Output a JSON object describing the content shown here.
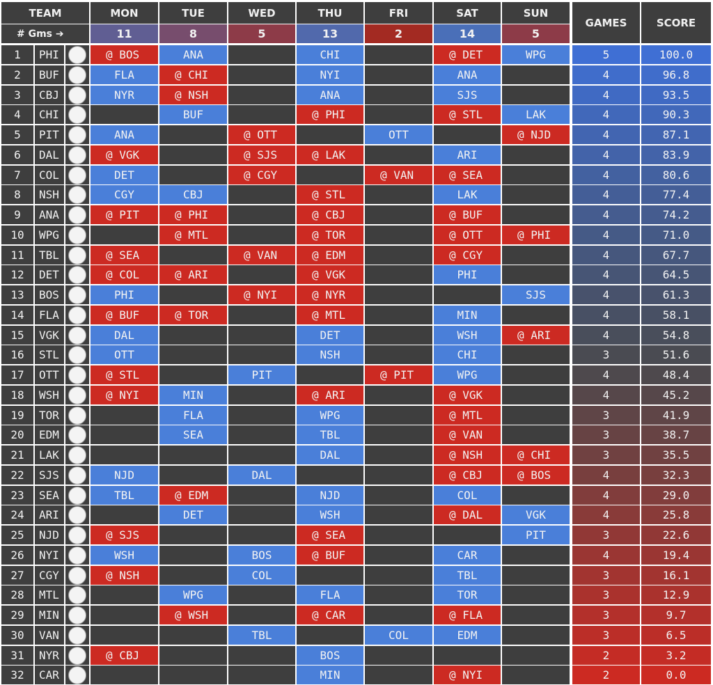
{
  "header": {
    "team": "TEAM",
    "games": "GAMES",
    "score": "SCORE",
    "gms_label": "# Gms ➔"
  },
  "days": [
    {
      "label": "MON",
      "games": "11"
    },
    {
      "label": "TUE",
      "games": "8"
    },
    {
      "label": "WED",
      "games": "5"
    },
    {
      "label": "THU",
      "games": "13"
    },
    {
      "label": "FRI",
      "games": "2"
    },
    {
      "label": "SAT",
      "games": "14"
    },
    {
      "label": "SUN",
      "games": "5"
    }
  ],
  "colors": {
    "home": "#4a7fd9",
    "away": "#cc2a22",
    "empty": "#3e3e3e",
    "score_high": "#3f6fd4",
    "score_low": "#cc2a22"
  },
  "teams": [
    {
      "rank": "1",
      "abbr": "PHI",
      "icon": "flyers-logo-icon",
      "days": [
        "@ BOS",
        "ANA",
        "",
        "CHI",
        "",
        "@ DET",
        "WPG"
      ],
      "games": "5",
      "score": "100.0"
    },
    {
      "rank": "2",
      "abbr": "BUF",
      "icon": "sabres-logo-icon",
      "days": [
        "FLA",
        "@ CHI",
        "",
        "NYI",
        "",
        "ANA",
        ""
      ],
      "games": "4",
      "score": "96.8"
    },
    {
      "rank": "3",
      "abbr": "CBJ",
      "icon": "blue-jackets-logo-icon",
      "days": [
        "NYR",
        "@ NSH",
        "",
        "ANA",
        "",
        "SJS",
        ""
      ],
      "games": "4",
      "score": "93.5"
    },
    {
      "rank": "4",
      "abbr": "CHI",
      "icon": "blackhawks-logo-icon",
      "days": [
        "",
        "BUF",
        "",
        "@ PHI",
        "",
        "@ STL",
        "LAK"
      ],
      "games": "4",
      "score": "90.3"
    },
    {
      "rank": "5",
      "abbr": "PIT",
      "icon": "penguins-logo-icon",
      "days": [
        "ANA",
        "",
        "@ OTT",
        "",
        "OTT",
        "",
        "@ NJD"
      ],
      "games": "4",
      "score": "87.1"
    },
    {
      "rank": "6",
      "abbr": "DAL",
      "icon": "stars-logo-icon",
      "days": [
        "@ VGK",
        "",
        "@ SJS",
        "@ LAK",
        "",
        "ARI",
        ""
      ],
      "games": "4",
      "score": "83.9"
    },
    {
      "rank": "7",
      "abbr": "COL",
      "icon": "avalanche-logo-icon",
      "days": [
        "DET",
        "",
        "@ CGY",
        "",
        "@ VAN",
        "@ SEA",
        ""
      ],
      "games": "4",
      "score": "80.6"
    },
    {
      "rank": "8",
      "abbr": "NSH",
      "icon": "predators-logo-icon",
      "days": [
        "CGY",
        "CBJ",
        "",
        "@ STL",
        "",
        "LAK",
        ""
      ],
      "games": "4",
      "score": "77.4"
    },
    {
      "rank": "9",
      "abbr": "ANA",
      "icon": "ducks-logo-icon",
      "days": [
        "@ PIT",
        "@ PHI",
        "",
        "@ CBJ",
        "",
        "@ BUF",
        ""
      ],
      "games": "4",
      "score": "74.2"
    },
    {
      "rank": "10",
      "abbr": "WPG",
      "icon": "jets-logo-icon",
      "days": [
        "",
        "@ MTL",
        "",
        "@ TOR",
        "",
        "@ OTT",
        "@ PHI"
      ],
      "games": "4",
      "score": "71.0"
    },
    {
      "rank": "11",
      "abbr": "TBL",
      "icon": "lightning-logo-icon",
      "days": [
        "@ SEA",
        "",
        "@ VAN",
        "@ EDM",
        "",
        "@ CGY",
        ""
      ],
      "games": "4",
      "score": "67.7"
    },
    {
      "rank": "12",
      "abbr": "DET",
      "icon": "red-wings-logo-icon",
      "days": [
        "@ COL",
        "@ ARI",
        "",
        "@ VGK",
        "",
        "PHI",
        ""
      ],
      "games": "4",
      "score": "64.5"
    },
    {
      "rank": "13",
      "abbr": "BOS",
      "icon": "bruins-logo-icon",
      "days": [
        "PHI",
        "",
        "@ NYI",
        "@ NYR",
        "",
        "",
        "SJS"
      ],
      "games": "4",
      "score": "61.3"
    },
    {
      "rank": "14",
      "abbr": "FLA",
      "icon": "panthers-logo-icon",
      "days": [
        "@ BUF",
        "@ TOR",
        "",
        "@ MTL",
        "",
        "MIN",
        ""
      ],
      "games": "4",
      "score": "58.1"
    },
    {
      "rank": "15",
      "abbr": "VGK",
      "icon": "golden-knights-logo-icon",
      "days": [
        "DAL",
        "",
        "",
        "DET",
        "",
        "WSH",
        "@ ARI"
      ],
      "games": "4",
      "score": "54.8"
    },
    {
      "rank": "16",
      "abbr": "STL",
      "icon": "blues-logo-icon",
      "days": [
        "OTT",
        "",
        "",
        "NSH",
        "",
        "CHI",
        ""
      ],
      "games": "3",
      "score": "51.6"
    },
    {
      "rank": "17",
      "abbr": "OTT",
      "icon": "senators-logo-icon",
      "days": [
        "@ STL",
        "",
        "PIT",
        "",
        "@ PIT",
        "WPG",
        ""
      ],
      "games": "4",
      "score": "48.4"
    },
    {
      "rank": "18",
      "abbr": "WSH",
      "icon": "capitals-logo-icon",
      "days": [
        "@ NYI",
        "MIN",
        "",
        "@ ARI",
        "",
        "@ VGK",
        ""
      ],
      "games": "4",
      "score": "45.2"
    },
    {
      "rank": "19",
      "abbr": "TOR",
      "icon": "maple-leafs-logo-icon",
      "days": [
        "",
        "FLA",
        "",
        "WPG",
        "",
        "@ MTL",
        ""
      ],
      "games": "3",
      "score": "41.9"
    },
    {
      "rank": "20",
      "abbr": "EDM",
      "icon": "oilers-logo-icon",
      "days": [
        "",
        "SEA",
        "",
        "TBL",
        "",
        "@ VAN",
        ""
      ],
      "games": "3",
      "score": "38.7"
    },
    {
      "rank": "21",
      "abbr": "LAK",
      "icon": "kings-logo-icon",
      "days": [
        "",
        "",
        "",
        "DAL",
        "",
        "@ NSH",
        "@ CHI"
      ],
      "games": "3",
      "score": "35.5"
    },
    {
      "rank": "22",
      "abbr": "SJS",
      "icon": "sharks-logo-icon",
      "days": [
        "NJD",
        "",
        "DAL",
        "",
        "",
        "@ CBJ",
        "@ BOS"
      ],
      "games": "4",
      "score": "32.3"
    },
    {
      "rank": "23",
      "abbr": "SEA",
      "icon": "kraken-logo-icon",
      "days": [
        "TBL",
        "@ EDM",
        "",
        "NJD",
        "",
        "COL",
        ""
      ],
      "games": "4",
      "score": "29.0"
    },
    {
      "rank": "24",
      "abbr": "ARI",
      "icon": "coyotes-logo-icon",
      "days": [
        "",
        "DET",
        "",
        "WSH",
        "",
        "@ DAL",
        "VGK"
      ],
      "games": "4",
      "score": "25.8"
    },
    {
      "rank": "25",
      "abbr": "NJD",
      "icon": "devils-logo-icon",
      "days": [
        "@ SJS",
        "",
        "",
        "@ SEA",
        "",
        "",
        "PIT"
      ],
      "games": "3",
      "score": "22.6"
    },
    {
      "rank": "26",
      "abbr": "NYI",
      "icon": "islanders-logo-icon",
      "days": [
        "WSH",
        "",
        "BOS",
        "@ BUF",
        "",
        "CAR",
        ""
      ],
      "games": "4",
      "score": "19.4"
    },
    {
      "rank": "27",
      "abbr": "CGY",
      "icon": "flames-logo-icon",
      "days": [
        "@ NSH",
        "",
        "COL",
        "",
        "",
        "TBL",
        ""
      ],
      "games": "3",
      "score": "16.1"
    },
    {
      "rank": "28",
      "abbr": "MTL",
      "icon": "canadiens-logo-icon",
      "days": [
        "",
        "WPG",
        "",
        "FLA",
        "",
        "TOR",
        ""
      ],
      "games": "3",
      "score": "12.9"
    },
    {
      "rank": "29",
      "abbr": "MIN",
      "icon": "wild-logo-icon",
      "days": [
        "",
        "@ WSH",
        "",
        "@ CAR",
        "",
        "@ FLA",
        ""
      ],
      "games": "3",
      "score": "9.7"
    },
    {
      "rank": "30",
      "abbr": "VAN",
      "icon": "canucks-logo-icon",
      "days": [
        "",
        "",
        "TBL",
        "",
        "COL",
        "EDM",
        ""
      ],
      "games": "3",
      "score": "6.5"
    },
    {
      "rank": "31",
      "abbr": "NYR",
      "icon": "rangers-logo-icon",
      "days": [
        "@ CBJ",
        "",
        "",
        "BOS",
        "",
        "",
        ""
      ],
      "games": "2",
      "score": "3.2"
    },
    {
      "rank": "32",
      "abbr": "CAR",
      "icon": "hurricanes-logo-icon",
      "days": [
        "",
        "",
        "",
        "MIN",
        "",
        "@ NYI",
        ""
      ],
      "games": "2",
      "score": "0.0"
    }
  ]
}
